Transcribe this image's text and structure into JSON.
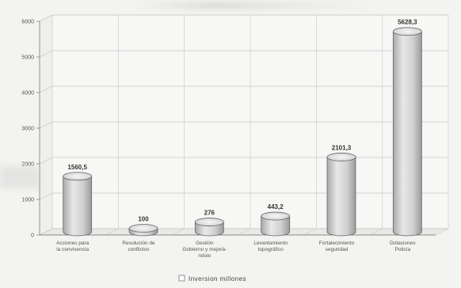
{
  "chart_data": {
    "type": "bar",
    "title": "",
    "xlabel": "",
    "ylabel": "",
    "ylim": [
      0,
      6000
    ],
    "yticks": [
      "0",
      "1000",
      "2000",
      "3000",
      "4000",
      "5000",
      "6000"
    ],
    "categories": [
      [
        "Acciones para",
        "la convivencia"
      ],
      [
        "Resolución de",
        "conflictos"
      ],
      [
        "Gestión",
        "Gobierno y mejorá-",
        "ndolo"
      ],
      [
        "Levantamiento",
        "topográfico"
      ],
      [
        "Fortalecimiento",
        "seguridad"
      ],
      [
        "Dotaciones",
        "Policía"
      ]
    ],
    "series": [
      {
        "name": "Inversion millones",
        "values": [
          1560.5,
          100,
          276,
          443.2,
          2101.3,
          5628.3
        ],
        "labels": [
          "1560,5",
          "100",
          "276",
          "443,2",
          "2101,3",
          "5628,3"
        ]
      }
    ],
    "legend": {
      "label": "Inversion millones",
      "position": "bottom"
    },
    "grid": true,
    "colors": {
      "bar": "#d2d2d2",
      "bar_top": "#eeeeee",
      "grid": "#c8c8c8",
      "axis": "#888888"
    }
  }
}
